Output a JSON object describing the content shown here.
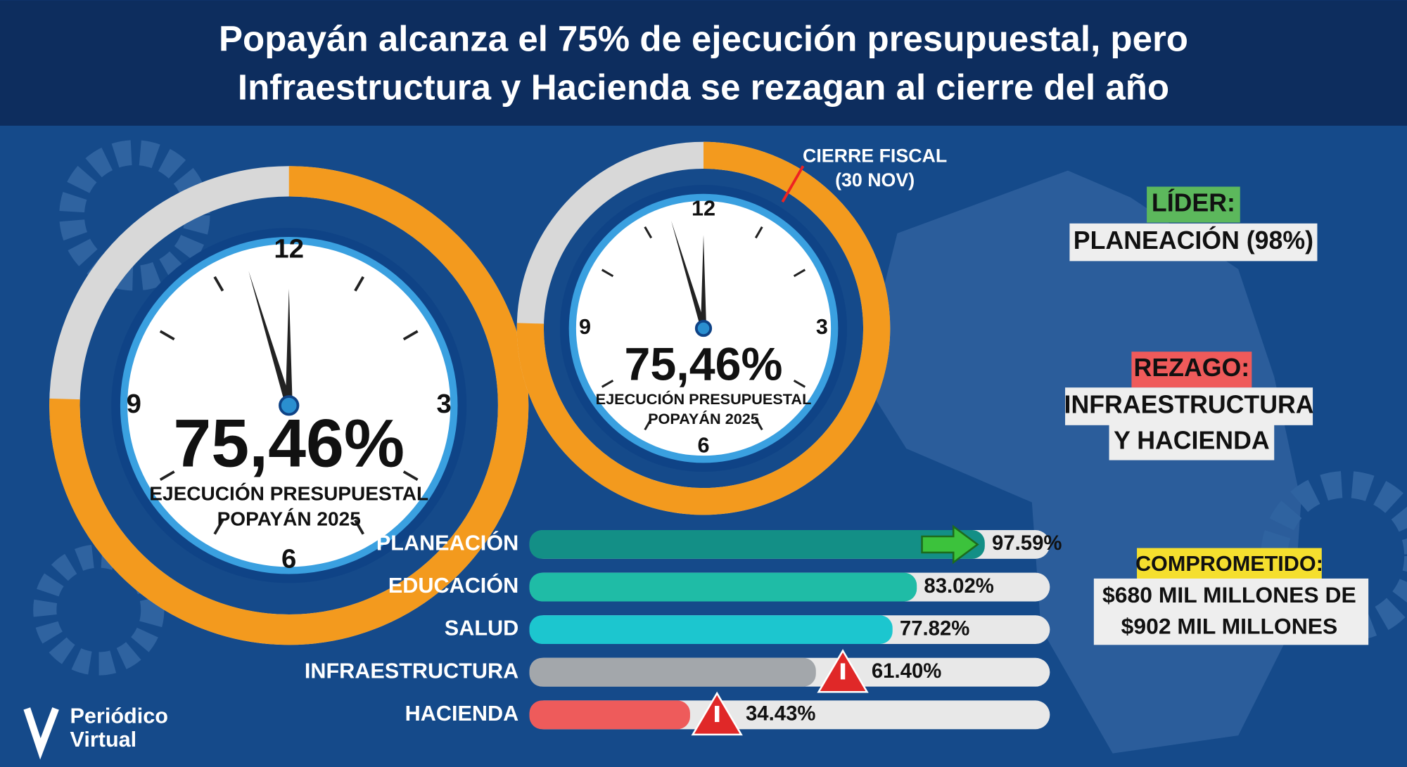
{
  "header": {
    "title_lines": [
      "Popayán alcanza el 75% de ejecución presupuestal, pero",
      "Infraestructura y Hacienda se rezagan al cierre del año"
    ]
  },
  "gauge": {
    "value": 75.46,
    "label": "75,46%",
    "caption_big": [
      "EJECUCIÓN PRESUPUESTAL",
      "POPAYÁN 2025"
    ],
    "caption_small": [
      "EJECUCIÓN PRESUPUESTAL",
      "POPAYÁN 2025"
    ],
    "clock_numbers": [
      "12",
      "3",
      "6",
      "9"
    ],
    "annotation": [
      "CIERRE FISCAL",
      "(30 NOV)"
    ]
  },
  "callouts": {
    "leader_tag": "LÍDER:",
    "leader_text": "PLANEACIÓN (98%)",
    "lag_tag": "REZAGO:",
    "lag_text": [
      "INFRAESTRUCTURA",
      "Y HACIENDA"
    ],
    "committed_tag": "COMPROMETIDO:",
    "committed_text": [
      "$680 MIL MILLONES DE",
      "$902 MIL MILLONES"
    ]
  },
  "chart_data": {
    "type": "bar",
    "orientation": "horizontal",
    "categories": [
      "PLANEACIÓN",
      "EDUCACIÓN",
      "SALUD",
      "INFRAESTRUCTURA",
      "HACIENDA"
    ],
    "values": [
      97.59,
      83.02,
      77.82,
      61.4,
      34.43
    ],
    "value_labels": [
      "97.59%",
      "83.02%",
      "77.82%",
      "61.40%",
      "34.43%"
    ],
    "colors": [
      "#138f86",
      "#1fbca6",
      "#1cc6cf",
      "#a3a7ab",
      "#ee5b5b"
    ],
    "xlim": [
      0,
      100
    ]
  },
  "logo": {
    "lines": [
      "Periódico",
      "Virtual"
    ]
  }
}
